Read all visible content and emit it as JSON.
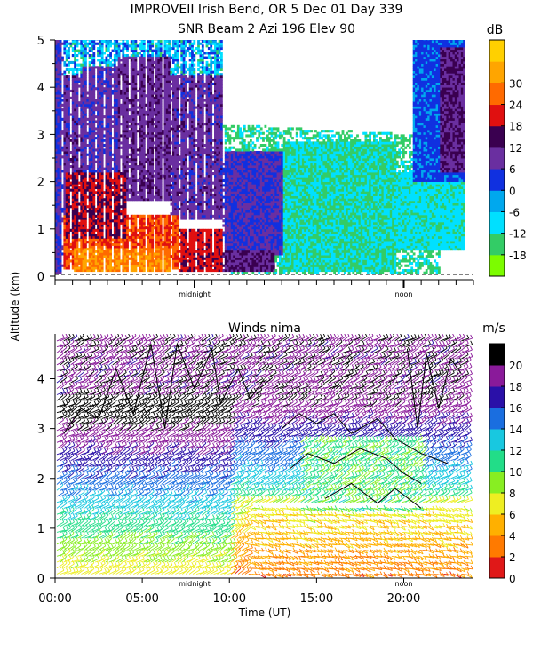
{
  "title": {
    "line1": "IMPROVEII  Irish Bend, OR    5 Dec 01 Day 339",
    "line2": "SNR Beam 2 Azi 196 Elev 90"
  },
  "chart_data": [
    {
      "type": "heatmap",
      "name": "SNR",
      "title": "SNR Beam 2 Azi 196 Elev 90",
      "ylabel": "Altitude (km)",
      "xlim": [
        0,
        24
      ],
      "ylim": [
        0,
        5
      ],
      "yticks": [
        0,
        1,
        2,
        3,
        4,
        5
      ],
      "time_markers": [
        {
          "label": "midnight",
          "hour": 8
        },
        {
          "label": "noon",
          "hour": 20
        }
      ],
      "colorbar": {
        "unit": "dB",
        "ticks": [
          30,
          24,
          18,
          12,
          6,
          0,
          -6,
          -12,
          -18
        ],
        "colors": [
          "#7cfc00",
          "#33cc66",
          "#00e0ff",
          "#00a8ee",
          "#1030e0",
          "#6a2fa0",
          "#3a0050",
          "#e01010",
          "#ff6a00",
          "#ffa500",
          "#ffd000"
        ]
      },
      "regions": [
        {
          "t0": 0.0,
          "t1": 0.4,
          "z0": 0.0,
          "z1": 5.0,
          "snr": 6
        },
        {
          "t0": 0.4,
          "t1": 1.5,
          "z0": 1.2,
          "z1": 4.2,
          "snr": 9
        },
        {
          "t0": 1.5,
          "t1": 3.5,
          "z0": 1.4,
          "z1": 4.4,
          "snr": 8
        },
        {
          "t0": 3.5,
          "t1": 6.5,
          "z0": 1.6,
          "z1": 4.6,
          "snr": 10
        },
        {
          "t0": 6.5,
          "t1": 9.5,
          "z0": 1.2,
          "z1": 4.2,
          "snr": 9
        },
        {
          "t0": 9.5,
          "t1": 13.0,
          "z0": 0.4,
          "z1": 2.6,
          "snr": 6
        },
        {
          "t0": 0.4,
          "t1": 7.0,
          "z0": 0.15,
          "z1": 1.3,
          "snr": 24
        },
        {
          "t0": 1.0,
          "t1": 6.5,
          "z0": 0.1,
          "z1": 0.6,
          "snr": 30
        },
        {
          "t0": 7.0,
          "t1": 9.5,
          "z0": 0.1,
          "z1": 1.0,
          "snr": 20
        },
        {
          "t0": 0.5,
          "t1": 4.0,
          "z0": 0.8,
          "z1": 2.2,
          "snr": 18
        },
        {
          "t0": 9.5,
          "t1": 12.5,
          "z0": 0.1,
          "z1": 0.5,
          "snr": 12
        },
        {
          "t0": 13.0,
          "t1": 19.5,
          "z0": 0.1,
          "z1": 2.8,
          "snr": -12
        },
        {
          "t0": 19.5,
          "t1": 23.5,
          "z0": 0.5,
          "z1": 2.2,
          "snr": -10
        },
        {
          "t0": 20.5,
          "t1": 23.5,
          "z0": 2.0,
          "z1": 5.0,
          "snr": 2
        },
        {
          "t0": 22.0,
          "t1": 23.5,
          "z0": 2.2,
          "z1": 4.8,
          "snr": 12
        }
      ]
    },
    {
      "type": "wind-barbs",
      "name": "Winds",
      "title": "Winds nima",
      "xlabel": "Time (UT)",
      "ylabel": "Altitude (km)",
      "xlim": [
        0,
        24
      ],
      "ylim": [
        0,
        4.9
      ],
      "xticks": [
        "00:00",
        "05:00",
        "10:00",
        "15:00",
        "20:00"
      ],
      "xtick_values": [
        0,
        5,
        10,
        15,
        20
      ],
      "yticks": [
        0,
        1,
        2,
        3,
        4
      ],
      "time_markers": [
        {
          "label": "midnight",
          "hour": 8
        },
        {
          "label": "noon",
          "hour": 20
        }
      ],
      "colorbar": {
        "unit": "m/s",
        "ticks": [
          20,
          18,
          16,
          14,
          12,
          10,
          8,
          6,
          4,
          2,
          0
        ],
        "colors": [
          "#000000",
          "#8a1a9a",
          "#2a10a8",
          "#1a6ee0",
          "#18c8e0",
          "#22dd88",
          "#88ee22",
          "#eeee22",
          "#ffb000",
          "#ff7a00",
          "#e01818"
        ]
      },
      "speed_field_note": "speed mostly 18-20 m/s aloft, decreasing toward surface; low speeds (2-6 m/s) in lower levels after 10:00",
      "contours": true
    }
  ]
}
